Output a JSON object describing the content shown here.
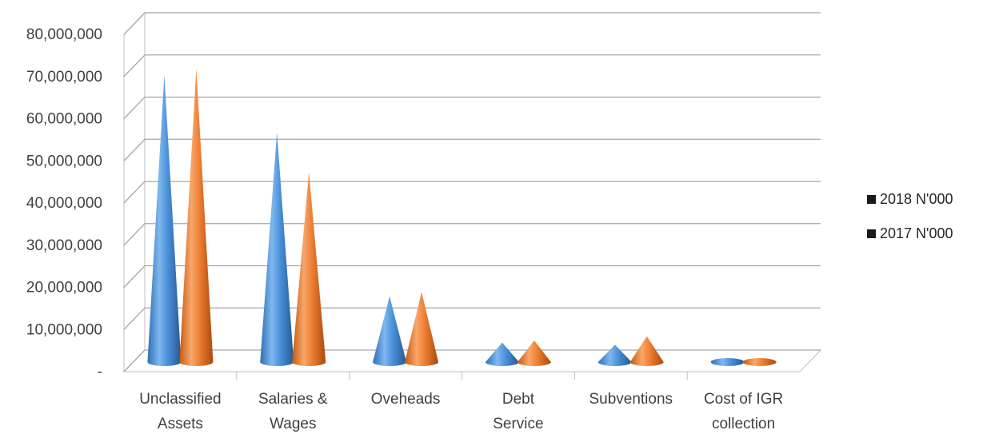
{
  "chart_data": {
    "type": "bar",
    "bar_shape": "3d-cone",
    "title": "",
    "xlabel": "",
    "ylabel": "",
    "categories": [
      [
        "Unclassified",
        "Assets"
      ],
      [
        "Salaries &",
        "Wages"
      ],
      [
        "Oveheads"
      ],
      [
        "Debt",
        "Service"
      ],
      [
        "Subventions"
      ],
      [
        "Cost of IGR",
        "collection"
      ]
    ],
    "series": [
      {
        "name": "2018 N'000",
        "color": "#4a90d9",
        "values": [
          68500000,
          55000000,
          16000000,
          5000000,
          4500000,
          300000
        ]
      },
      {
        "name": "2017 N'000",
        "color": "#ed7d31",
        "values": [
          70000000,
          45500000,
          17000000,
          5500000,
          6500000,
          300000
        ]
      }
    ],
    "ylim": [
      0,
      80000000
    ],
    "yticks": [
      0,
      10000000,
      20000000,
      30000000,
      40000000,
      50000000,
      60000000,
      70000000,
      80000000
    ],
    "ytick_labels": [
      "-",
      "10,000,000",
      "20,000,000",
      "30,000,000",
      "40,000,000",
      "50,000,000",
      "60,000,000",
      "70,000,000",
      "80,000,000"
    ],
    "grid": true,
    "legend_position": "right"
  }
}
